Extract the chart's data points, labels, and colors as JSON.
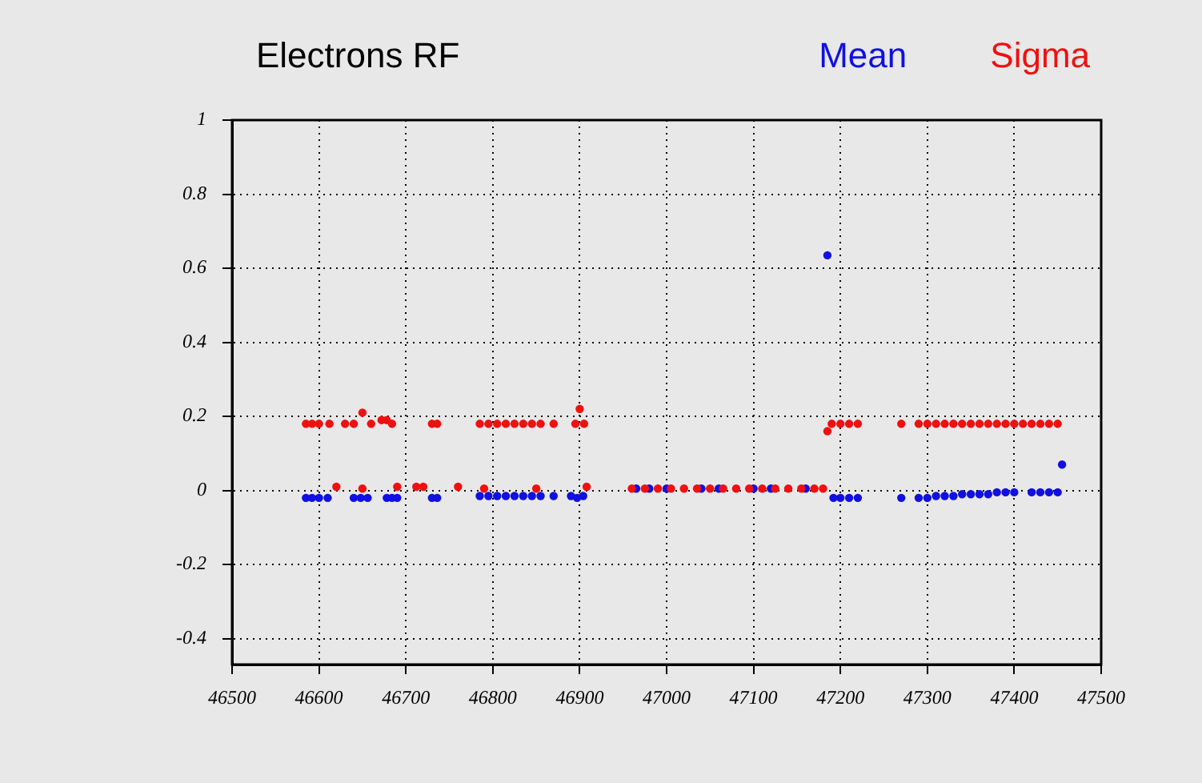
{
  "chart_data": {
    "type": "scatter",
    "title": "Electrons RF",
    "xlim": [
      46500,
      47500
    ],
    "xticks": [
      46500,
      46600,
      46700,
      46800,
      46900,
      47000,
      47100,
      47200,
      47300,
      47400,
      47500
    ],
    "ylim": [
      -0.47,
      1
    ],
    "yticks": [
      -0.4,
      -0.2,
      0,
      0.2,
      0.4,
      0.6,
      0.8,
      1
    ],
    "grid": true,
    "legend": "top right",
    "marker": "circle",
    "series": [
      {
        "name": "Mean",
        "color": "#1010e0",
        "x": [
          46585,
          46592,
          46600,
          46610,
          46640,
          46648,
          46656,
          46678,
          46684,
          46690,
          46730,
          46736,
          46785,
          46795,
          46805,
          46815,
          46825,
          46835,
          46845,
          46855,
          46870,
          46890,
          46897,
          46904,
          46965,
          46980,
          47000,
          47040,
          47060,
          47100,
          47120,
          47160,
          47185,
          47192,
          47200,
          47210,
          47220,
          47270,
          47290,
          47300,
          47310,
          47320,
          47330,
          47340,
          47350,
          47360,
          47370,
          47380,
          47390,
          47400,
          47420,
          47430,
          47440,
          47450,
          47455
        ],
        "values": [
          -0.02,
          -0.02,
          -0.02,
          -0.02,
          -0.02,
          -0.02,
          -0.02,
          -0.02,
          -0.02,
          -0.02,
          -0.02,
          -0.02,
          -0.015,
          -0.015,
          -0.015,
          -0.015,
          -0.015,
          -0.015,
          -0.015,
          -0.015,
          -0.015,
          -0.015,
          -0.02,
          -0.015,
          0.005,
          0.005,
          0.005,
          0.005,
          0.005,
          0.005,
          0.005,
          0.005,
          0.635,
          -0.02,
          -0.02,
          -0.02,
          -0.02,
          -0.02,
          -0.02,
          -0.02,
          -0.015,
          -0.015,
          -0.015,
          -0.01,
          -0.01,
          -0.01,
          -0.01,
          -0.005,
          -0.005,
          -0.005,
          -0.005,
          -0.005,
          -0.005,
          -0.005,
          0.07
        ]
      },
      {
        "name": "Sigma",
        "color": "#f01010",
        "x": [
          46585,
          46592,
          46600,
          46612,
          46630,
          46640,
          46650,
          46660,
          46672,
          46678,
          46684,
          46730,
          46736,
          46785,
          46795,
          46805,
          46815,
          46825,
          46835,
          46845,
          46855,
          46870,
          46895,
          46900,
          46905,
          46620,
          46650,
          46690,
          46712,
          46720,
          46760,
          46790,
          46850,
          46908,
          46960,
          46975,
          46990,
          47005,
          47020,
          47035,
          47050,
          47065,
          47080,
          47095,
          47110,
          47125,
          47140,
          47155,
          47170,
          47180,
          47185,
          47190,
          47200,
          47210,
          47220,
          47270,
          47290,
          47300,
          47310,
          47320,
          47330,
          47340,
          47350,
          47360,
          47370,
          47380,
          47390,
          47400,
          47410,
          47420,
          47430,
          47440,
          47450
        ],
        "values": [
          0.18,
          0.18,
          0.18,
          0.18,
          0.18,
          0.18,
          0.21,
          0.18,
          0.19,
          0.19,
          0.18,
          0.18,
          0.18,
          0.18,
          0.18,
          0.18,
          0.18,
          0.18,
          0.18,
          0.18,
          0.18,
          0.18,
          0.18,
          0.22,
          0.18,
          0.01,
          0.005,
          0.01,
          0.01,
          0.01,
          0.01,
          0.005,
          0.005,
          0.01,
          0.005,
          0.005,
          0.005,
          0.005,
          0.005,
          0.005,
          0.005,
          0.005,
          0.005,
          0.005,
          0.005,
          0.005,
          0.005,
          0.005,
          0.005,
          0.005,
          0.16,
          0.18,
          0.18,
          0.18,
          0.18,
          0.18,
          0.18,
          0.18,
          0.18,
          0.18,
          0.18,
          0.18,
          0.18,
          0.18,
          0.18,
          0.18,
          0.18,
          0.18,
          0.18,
          0.18,
          0.18,
          0.18,
          0.18
        ]
      }
    ]
  }
}
